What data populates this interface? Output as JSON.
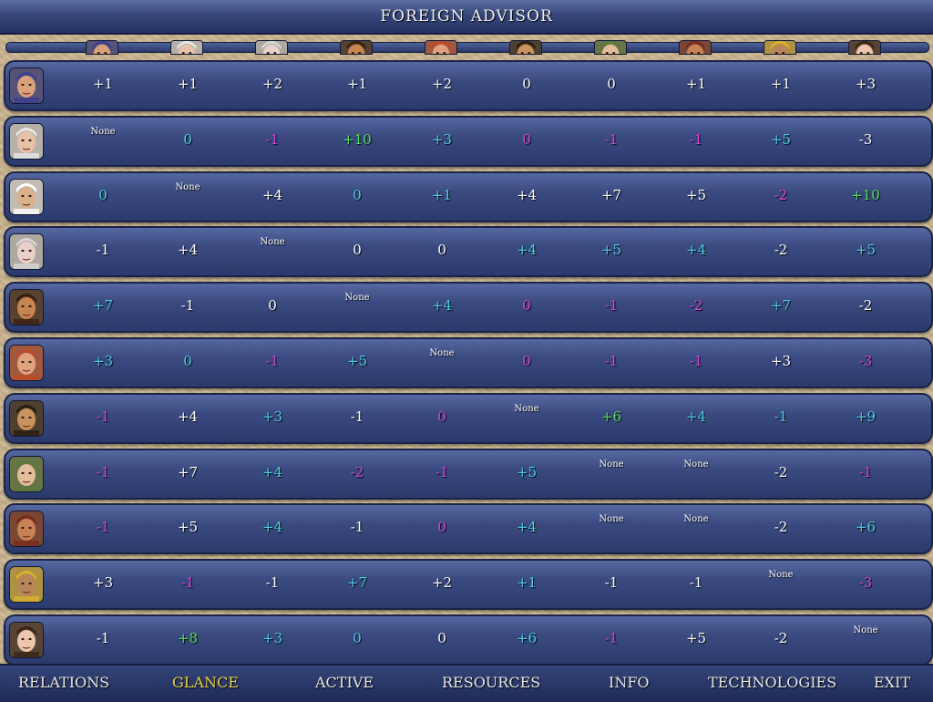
{
  "title": "FOREIGN ADVISOR",
  "leaders": [
    {
      "name": "leader-1",
      "skin": "#d9a27a",
      "hair": "#3b3f8f"
    },
    {
      "name": "leader-2",
      "skin": "#e6c2a8",
      "hair": "#e9e9e9"
    },
    {
      "name": "leader-3",
      "skin": "#d8b08a",
      "hair": "#ffffff"
    },
    {
      "name": "leader-4",
      "skin": "#ead0c8",
      "hair": "#d8d8d8"
    },
    {
      "name": "leader-5",
      "skin": "#c78552",
      "hair": "#3a1f10"
    },
    {
      "name": "leader-6",
      "skin": "#e0a27e",
      "hair": "#c04a2a"
    },
    {
      "name": "leader-7",
      "skin": "#c9935f",
      "hair": "#2b1b10"
    },
    {
      "name": "leader-8",
      "skin": "#e2bd99",
      "hair": "#5b7a3a"
    },
    {
      "name": "leader-9",
      "skin": "#c98255",
      "hair": "#7a2a1a"
    },
    {
      "name": "leader-10",
      "skin": "#b8865a",
      "hair": "#d9b02e"
    },
    {
      "name": "leader-11",
      "skin": "#ecc7ad",
      "hair": "#3a2416"
    }
  ],
  "header_leaders": [
    0,
    1,
    3,
    4,
    5,
    6,
    7,
    8,
    9,
    10
  ],
  "rows": [
    [
      {
        "t": "+1",
        "c": "white"
      },
      {
        "t": "+1",
        "c": "white"
      },
      {
        "t": "+2",
        "c": "white"
      },
      {
        "t": "+1",
        "c": "white"
      },
      {
        "t": "+2",
        "c": "white"
      },
      {
        "t": "0",
        "c": "white"
      },
      {
        "t": "0",
        "c": "white"
      },
      {
        "t": "+1",
        "c": "white"
      },
      {
        "t": "+1",
        "c": "white"
      },
      {
        "t": "+3",
        "c": "white"
      }
    ],
    [
      {
        "t": "None",
        "c": "none"
      },
      {
        "t": "0",
        "c": "cyan"
      },
      {
        "t": "-1",
        "c": "magenta"
      },
      {
        "t": "+10",
        "c": "green"
      },
      {
        "t": "+3",
        "c": "cyan"
      },
      {
        "t": "0",
        "c": "magenta"
      },
      {
        "t": "-1",
        "c": "magenta"
      },
      {
        "t": "-1",
        "c": "magenta"
      },
      {
        "t": "+5",
        "c": "cyan"
      },
      {
        "t": "-3",
        "c": "white"
      }
    ],
    [
      {
        "t": "0",
        "c": "cyan"
      },
      {
        "t": "None",
        "c": "none"
      },
      {
        "t": "+4",
        "c": "white"
      },
      {
        "t": "0",
        "c": "cyan"
      },
      {
        "t": "+1",
        "c": "cyan"
      },
      {
        "t": "+4",
        "c": "white"
      },
      {
        "t": "+7",
        "c": "white"
      },
      {
        "t": "+5",
        "c": "white"
      },
      {
        "t": "-2",
        "c": "magenta"
      },
      {
        "t": "+10",
        "c": "green"
      }
    ],
    [
      {
        "t": "-1",
        "c": "white"
      },
      {
        "t": "+4",
        "c": "white"
      },
      {
        "t": "None",
        "c": "none"
      },
      {
        "t": "0",
        "c": "white"
      },
      {
        "t": "0",
        "c": "white"
      },
      {
        "t": "+4",
        "c": "cyan"
      },
      {
        "t": "+5",
        "c": "cyan"
      },
      {
        "t": "+4",
        "c": "cyan"
      },
      {
        "t": "-2",
        "c": "white"
      },
      {
        "t": "+5",
        "c": "cyan"
      }
    ],
    [
      {
        "t": "+7",
        "c": "cyan"
      },
      {
        "t": "-1",
        "c": "white"
      },
      {
        "t": "0",
        "c": "white"
      },
      {
        "t": "None",
        "c": "none"
      },
      {
        "t": "+4",
        "c": "cyan"
      },
      {
        "t": "0",
        "c": "magenta"
      },
      {
        "t": "-1",
        "c": "magenta"
      },
      {
        "t": "-2",
        "c": "magenta"
      },
      {
        "t": "+7",
        "c": "cyan"
      },
      {
        "t": "-2",
        "c": "white"
      }
    ],
    [
      {
        "t": "+3",
        "c": "cyan"
      },
      {
        "t": "0",
        "c": "cyan"
      },
      {
        "t": "-1",
        "c": "magenta"
      },
      {
        "t": "+5",
        "c": "cyan"
      },
      {
        "t": "None",
        "c": "none"
      },
      {
        "t": "0",
        "c": "magenta"
      },
      {
        "t": "-1",
        "c": "magenta"
      },
      {
        "t": "-1",
        "c": "magenta"
      },
      {
        "t": "+3",
        "c": "white"
      },
      {
        "t": "-3",
        "c": "magenta"
      }
    ],
    [
      {
        "t": "-1",
        "c": "magenta"
      },
      {
        "t": "+4",
        "c": "white"
      },
      {
        "t": "+3",
        "c": "cyan"
      },
      {
        "t": "-1",
        "c": "white"
      },
      {
        "t": "0",
        "c": "magenta"
      },
      {
        "t": "None",
        "c": "none"
      },
      {
        "t": "+6",
        "c": "green"
      },
      {
        "t": "+4",
        "c": "cyan"
      },
      {
        "t": "-1",
        "c": "cyan"
      },
      {
        "t": "+9",
        "c": "cyan"
      }
    ],
    [
      {
        "t": "-1",
        "c": "magenta"
      },
      {
        "t": "+7",
        "c": "white"
      },
      {
        "t": "+4",
        "c": "cyan"
      },
      {
        "t": "-2",
        "c": "magenta"
      },
      {
        "t": "-1",
        "c": "magenta"
      },
      {
        "t": "+5",
        "c": "cyan"
      },
      {
        "t": "None",
        "c": "none"
      },
      {
        "t": "None",
        "c": "none"
      },
      {
        "t": "-2",
        "c": "white"
      },
      {
        "t": "-1",
        "c": "magenta"
      }
    ],
    [
      {
        "t": "-1",
        "c": "magenta"
      },
      {
        "t": "+5",
        "c": "white"
      },
      {
        "t": "+4",
        "c": "cyan"
      },
      {
        "t": "-1",
        "c": "white"
      },
      {
        "t": "0",
        "c": "magenta"
      },
      {
        "t": "+4",
        "c": "cyan"
      },
      {
        "t": "None",
        "c": "none"
      },
      {
        "t": "None",
        "c": "none"
      },
      {
        "t": "-2",
        "c": "white"
      },
      {
        "t": "+6",
        "c": "cyan"
      }
    ],
    [
      {
        "t": "+3",
        "c": "white"
      },
      {
        "t": "-1",
        "c": "magenta"
      },
      {
        "t": "-1",
        "c": "white"
      },
      {
        "t": "+7",
        "c": "cyan"
      },
      {
        "t": "+2",
        "c": "white"
      },
      {
        "t": "+1",
        "c": "cyan"
      },
      {
        "t": "-1",
        "c": "white"
      },
      {
        "t": "-1",
        "c": "white"
      },
      {
        "t": "None",
        "c": "none"
      },
      {
        "t": "-3",
        "c": "magenta"
      }
    ],
    [
      {
        "t": "-1",
        "c": "white"
      },
      {
        "t": "+8",
        "c": "green"
      },
      {
        "t": "+3",
        "c": "cyan"
      },
      {
        "t": "0",
        "c": "cyan"
      },
      {
        "t": "0",
        "c": "white"
      },
      {
        "t": "+6",
        "c": "cyan"
      },
      {
        "t": "-1",
        "c": "magenta"
      },
      {
        "t": "+5",
        "c": "white"
      },
      {
        "t": "-2",
        "c": "white"
      },
      {
        "t": "None",
        "c": "none"
      }
    ]
  ],
  "tabs": [
    {
      "label": "RELATIONS",
      "active": false
    },
    {
      "label": "GLANCE",
      "active": true
    },
    {
      "label": "ACTIVE",
      "active": false
    },
    {
      "label": "RESOURCES",
      "active": false
    },
    {
      "label": "INFO",
      "active": false
    },
    {
      "label": "TECHNOLOGIES",
      "active": false
    },
    {
      "label": "EXIT",
      "active": false
    }
  ],
  "colors": {
    "white": "#ffffff",
    "cyan": "#4fd0e6",
    "magenta": "#d64ad8",
    "green": "#58e05a",
    "active_tab": "#e8d24a"
  }
}
